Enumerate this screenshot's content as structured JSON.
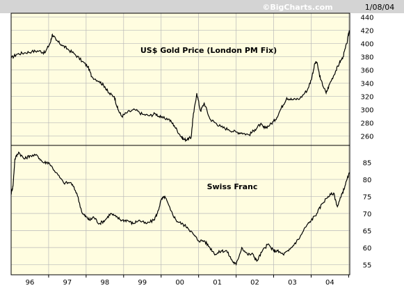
{
  "header": {
    "copyright": "©BigCharts.com",
    "date": "1/08/04"
  },
  "colors": {
    "plot_background": "#fffde0",
    "header_background": "#d4d4d4",
    "line": "#000000",
    "grid": "#b8b8b8",
    "border": "#000000"
  },
  "chart_data": [
    {
      "type": "line",
      "title": "US$ Gold Price (London PM Fix)",
      "xlabel": "",
      "ylabel": "",
      "x_ticks": [
        "96",
        "97",
        "98",
        "99",
        "00",
        "01",
        "02",
        "03",
        "04"
      ],
      "y_ticks": [
        260,
        280,
        300,
        320,
        340,
        360,
        380,
        400,
        420,
        440
      ],
      "ylim": [
        246,
        446
      ],
      "xlim": [
        1995.0,
        2004.03
      ],
      "grid": true,
      "series": [
        {
          "x": [
            1995.0,
            1995.15,
            1995.35,
            1995.55,
            1995.75,
            1995.9,
            1996.05,
            1996.1,
            1996.2,
            1996.35,
            1996.5,
            1996.7,
            1996.9,
            1997.05,
            1997.15,
            1997.35,
            1997.5,
            1997.6,
            1997.75,
            1997.85,
            1997.95,
            1998.1,
            1998.3,
            1998.5,
            1998.7,
            1998.85,
            1999.0,
            1999.2,
            1999.35,
            1999.5,
            1999.6,
            1999.7,
            1999.8,
            1999.85,
            1999.95,
            2000.05,
            2000.15,
            2000.3,
            2000.45,
            2000.6,
            2000.8,
            2001.0,
            2001.15,
            2001.35,
            2001.5,
            2001.65,
            2001.75,
            2001.9,
            2002.05,
            2002.2,
            2002.35,
            2002.5,
            2002.7,
            2002.9,
            2003.0,
            2003.1,
            2003.15,
            2003.25,
            2003.4,
            2003.5,
            2003.65,
            2003.75,
            2003.85,
            2003.95,
            2004.02
          ],
          "values": [
            378,
            384,
            386,
            388,
            389,
            386,
            402,
            414,
            405,
            398,
            392,
            384,
            373,
            365,
            350,
            343,
            335,
            325,
            320,
            300,
            290,
            296,
            300,
            293,
            291,
            294,
            288,
            286,
            276,
            262,
            255,
            255,
            258,
            288,
            325,
            298,
            310,
            286,
            280,
            274,
            270,
            266,
            265,
            262,
            270,
            278,
            272,
            277,
            285,
            302,
            318,
            315,
            317,
            330,
            345,
            370,
            372,
            346,
            325,
            340,
            358,
            370,
            380,
            400,
            420
          ]
        }
      ]
    },
    {
      "type": "line",
      "title": "Swiss Franc",
      "xlabel": "",
      "ylabel": "",
      "x_ticks": [
        "96",
        "97",
        "98",
        "99",
        "00",
        "01",
        "02",
        "03",
        "04"
      ],
      "y_ticks": [
        55,
        60,
        65,
        70,
        75,
        80,
        85
      ],
      "ylim": [
        52,
        90
      ],
      "xlim": [
        1995.0,
        2004.03
      ],
      "grid": true,
      "series": [
        {
          "x": [
            1995.0,
            1995.05,
            1995.1,
            1995.2,
            1995.35,
            1995.5,
            1995.7,
            1995.85,
            1996.0,
            1996.2,
            1996.4,
            1996.6,
            1996.75,
            1996.9,
            1997.0,
            1997.1,
            1997.2,
            1997.35,
            1997.5,
            1997.65,
            1997.8,
            1997.95,
            1998.1,
            1998.25,
            1998.4,
            1998.6,
            1998.8,
            1998.9,
            1999.0,
            1999.1,
            1999.25,
            1999.4,
            1999.55,
            1999.7,
            1999.85,
            2000.0,
            2000.15,
            2000.3,
            2000.45,
            2000.6,
            2000.75,
            2000.9,
            2001.0,
            2001.15,
            2001.3,
            2001.45,
            2001.55,
            2001.7,
            2001.85,
            2002.0,
            2002.1,
            2002.25,
            2002.4,
            2002.55,
            2002.7,
            2002.85,
            2003.0,
            2003.15,
            2003.3,
            2003.45,
            2003.6,
            2003.7,
            2003.8,
            2003.9,
            2004.02
          ],
          "values": [
            76,
            78,
            86,
            88,
            86,
            87,
            87,
            85,
            85,
            82,
            79,
            79,
            76,
            70,
            69,
            68,
            69,
            67,
            68,
            70,
            69,
            68,
            68,
            67,
            68,
            67,
            68,
            70,
            74,
            75,
            71,
            68,
            67,
            66,
            64,
            62,
            62,
            60,
            58,
            59,
            59,
            56,
            55,
            60,
            58,
            58,
            56,
            59,
            61,
            59,
            59,
            58,
            59,
            61,
            63,
            66,
            68,
            70,
            73,
            75,
            76,
            72,
            75,
            78,
            82
          ]
        }
      ]
    }
  ]
}
